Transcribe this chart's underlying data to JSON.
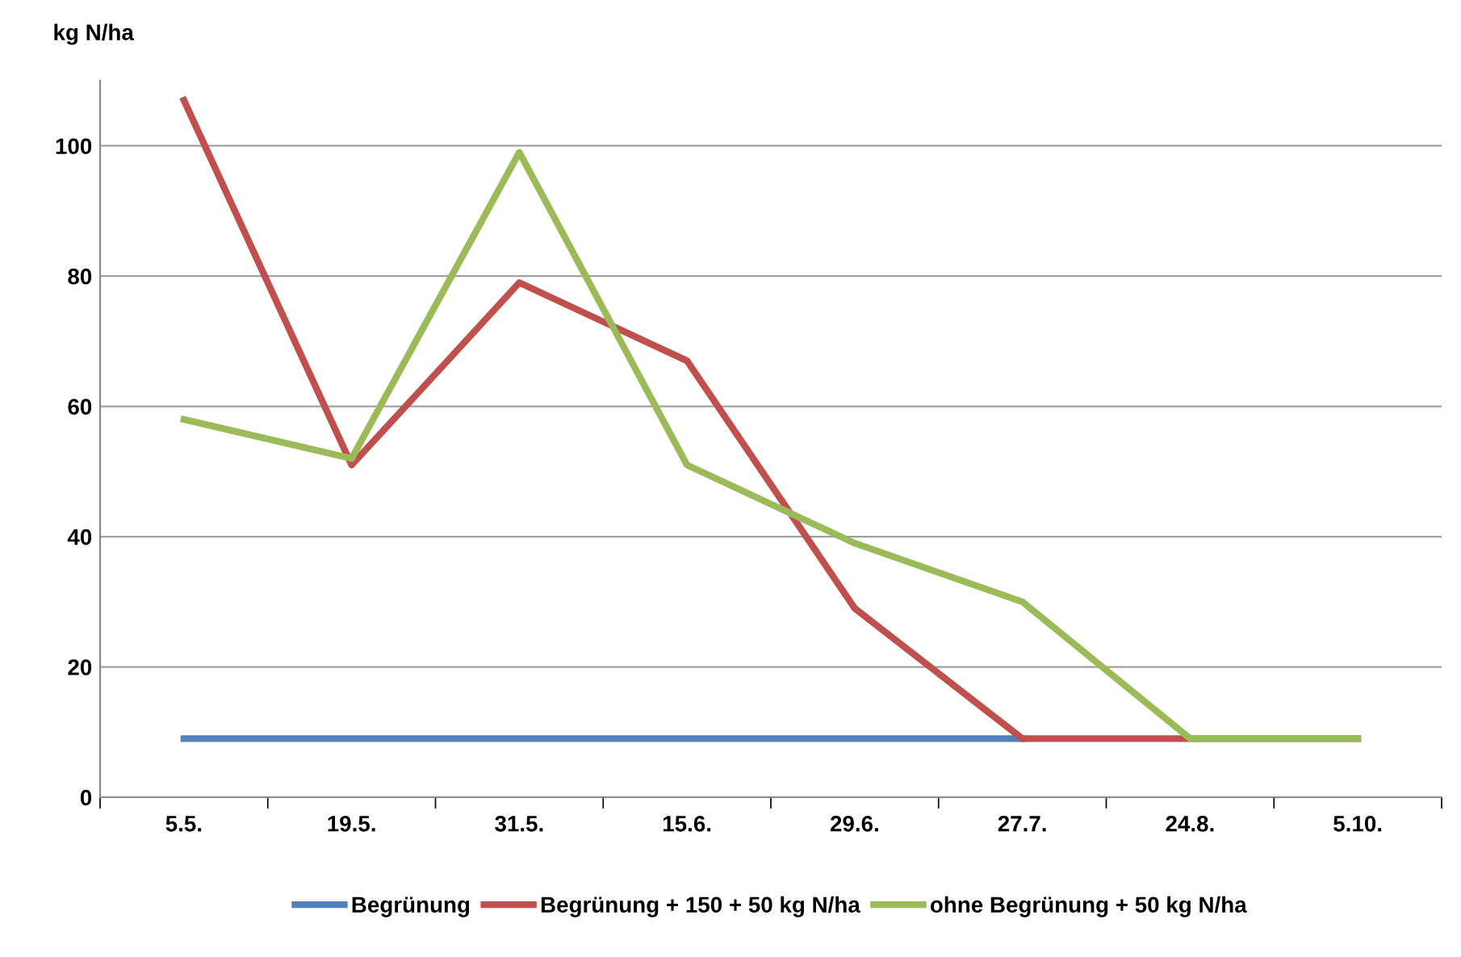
{
  "chart_data": {
    "type": "line",
    "ylabel": "kg N/ha",
    "categories": [
      "5.5.",
      "19.5.",
      "31.5.",
      "15.6.",
      "29.6.",
      "27.7.",
      "24.8.",
      "5.10."
    ],
    "series": [
      {
        "name": "Begrünung",
        "color": "#4f81bd",
        "values": [
          9,
          9,
          9,
          9,
          9,
          9,
          null,
          null
        ]
      },
      {
        "name": "Begrünung + 150 + 50 kg N/ha",
        "color": "#c0504d",
        "values": [
          107,
          51,
          79,
          67,
          29,
          9,
          9,
          9
        ]
      },
      {
        "name": "ohne Begrünung + 50 kg N/ha",
        "color": "#9bbb59",
        "values": [
          58,
          52,
          99,
          51,
          39,
          30,
          9,
          9
        ]
      }
    ],
    "ylim": [
      0,
      110
    ],
    "yticks": [
      0,
      20,
      40,
      60,
      80,
      100
    ],
    "grid": "y",
    "legend": "bottom",
    "marker": "none",
    "line_style": "solid"
  }
}
